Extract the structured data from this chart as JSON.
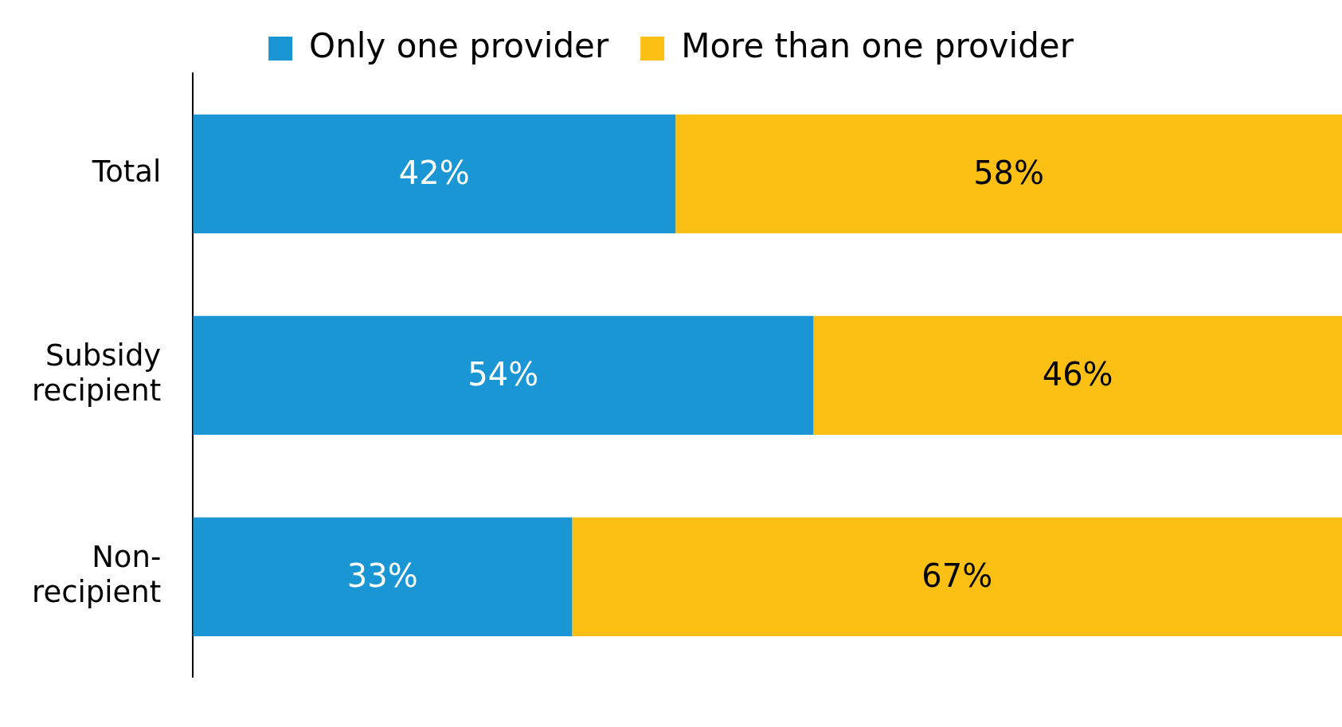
{
  "chart_data": {
    "type": "bar",
    "orientation": "horizontal",
    "stacked": true,
    "categories": [
      "Total",
      "Subsidy recipient",
      "Non-recipient"
    ],
    "xlim": [
      0,
      100
    ],
    "tick_labels": "y",
    "legend": "top",
    "series": [
      {
        "name": "Only one provider",
        "color": "#1996d3",
        "values": [
          42,
          54,
          33
        ],
        "value_labels": [
          "42%",
          "54%",
          "33%"
        ]
      },
      {
        "name": "More than one provider",
        "color": "#fcbf13",
        "values": [
          58,
          46,
          67
        ],
        "value_labels": [
          "58%",
          "46%",
          "67%"
        ]
      }
    ]
  }
}
